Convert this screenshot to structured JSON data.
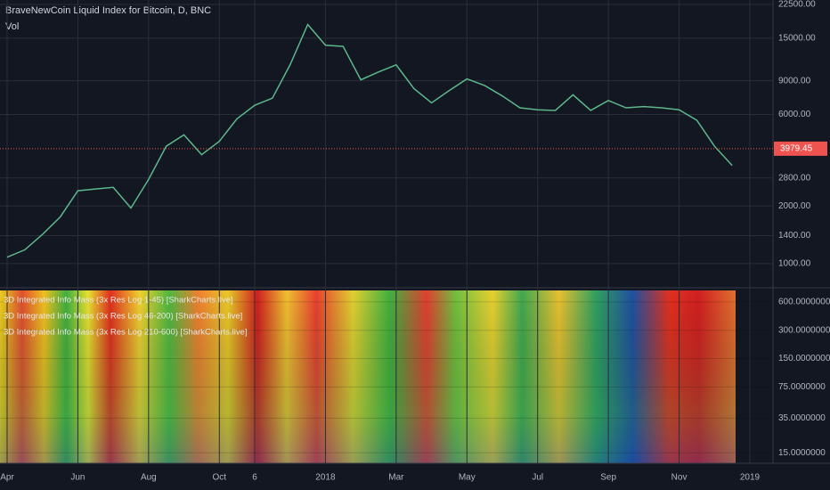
{
  "chart_data": [
    {
      "type": "line",
      "title": "BraveNewCoin Liquid Index for Bitcoin, D, BNC",
      "subtitle": "Vol",
      "log_scale": true,
      "grid": true,
      "color": "#5cb88a",
      "categories": [
        "Apr",
        null,
        null,
        null,
        "Jun",
        null,
        null,
        null,
        "Aug",
        null,
        null,
        null,
        "Oct",
        null,
        "6",
        null,
        null,
        null,
        "2018",
        null,
        null,
        null,
        "Mar",
        null,
        null,
        null,
        "May",
        null,
        null,
        null,
        "Jul",
        null,
        null,
        null,
        "Sep",
        null,
        null,
        null,
        "Nov",
        null,
        null,
        null,
        "2019"
      ],
      "values": [
        1080,
        1180,
        1420,
        1750,
        2400,
        2450,
        2500,
        1950,
        2750,
        4100,
        4700,
        3700,
        4350,
        5700,
        6700,
        7300,
        10900,
        17700,
        13800,
        13600,
        9100,
        10000,
        10900,
        8200,
        6900,
        8000,
        9200,
        8500,
        7500,
        6500,
        6350,
        6300,
        7600,
        6300,
        7100,
        6500,
        6600,
        6500,
        6350,
        5600,
        4100,
        3250,
        null
      ],
      "last_price": {
        "value": 3979.45,
        "label": "3979.45"
      },
      "last_price_color": "#ef5350",
      "ylim": [
        756,
        23750
      ],
      "yticks": [
        {
          "value": 1000,
          "label": "1000.00"
        },
        {
          "value": 1400,
          "label": "1400.00"
        },
        {
          "value": 2000,
          "label": "2000.00"
        },
        {
          "value": 2800,
          "label": "2800.00"
        },
        {
          "value": 6000,
          "label": "6000.00"
        },
        {
          "value": 9000,
          "label": "9000.00"
        },
        {
          "value": 15000,
          "label": "15000.00"
        },
        {
          "value": 22500,
          "label": "22500.00"
        }
      ]
    },
    {
      "type": "heatmap",
      "log_scale": true,
      "grid": true,
      "labels": [
        "3D Integrated Info Mass (3x Res Log 1-45) [SharkCharts.live]",
        "3D Integrated Info Mass (3x Res Log 46-200) [SharkCharts.live]",
        "3D Integrated Info Mass (3x Res Log 210-600) [SharkCharts.live]"
      ],
      "ylim": [
        11.6,
        795
      ],
      "yticks": [
        {
          "value": 15,
          "label": "15.0000000"
        },
        {
          "value": 35,
          "label": "35.0000000"
        },
        {
          "value": 75,
          "label": "75.0000000"
        },
        {
          "value": 150,
          "label": "150.0000000"
        },
        {
          "value": 300,
          "label": "300.0000000"
        },
        {
          "value": 600,
          "label": "600.0000000"
        }
      ]
    }
  ]
}
